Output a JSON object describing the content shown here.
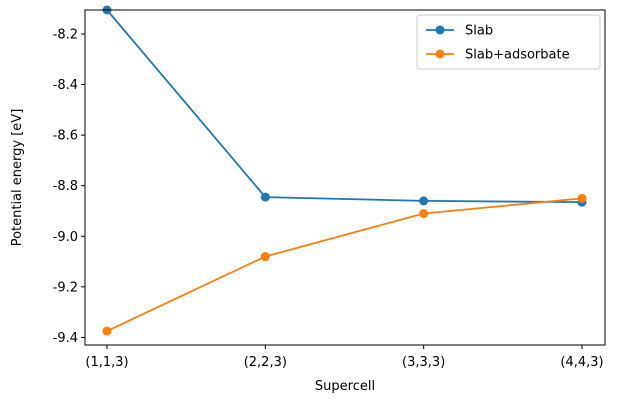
{
  "chart_data": {
    "type": "line",
    "title": "",
    "xlabel": "Supercell",
    "ylabel": "Potential energy [eV]",
    "categories": [
      "(1,1,3)",
      "(2,2,3)",
      "(3,3,3)",
      "(4,4,3)"
    ],
    "ylim": [
      -9.43,
      -8.105
    ],
    "yticks": [
      -9.4,
      -9.2,
      -9.0,
      -8.8,
      -8.6,
      -8.4,
      -8.2
    ],
    "ytick_labels": [
      "-9.4",
      "-9.2",
      "-9.0",
      "-8.8",
      "-8.6",
      "-8.4",
      "-8.2"
    ],
    "grid": false,
    "legend_position": "top-right",
    "series": [
      {
        "name": "Slab",
        "color": "#1f77b4",
        "marker": "circle",
        "values": [
          -8.105,
          -8.845,
          -8.86,
          -8.865
        ]
      },
      {
        "name": "Slab+adsorbate",
        "color": "#ff7f0e",
        "marker": "circle",
        "values": [
          -9.375,
          -9.08,
          -8.91,
          -8.85
        ]
      }
    ]
  }
}
